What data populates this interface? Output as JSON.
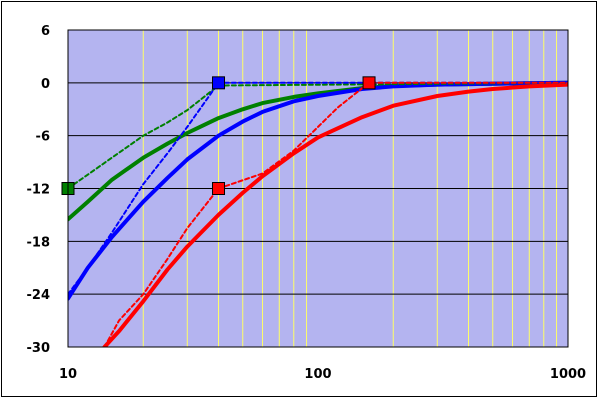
{
  "chart_data": {
    "type": "line",
    "x_scale": "log",
    "xlim": [
      10,
      1000
    ],
    "ylim": [
      -30,
      6
    ],
    "x_ticks": [
      10,
      100,
      1000
    ],
    "x_tick_labels": [
      "10",
      "100",
      "1000"
    ],
    "y_ticks": [
      6,
      0,
      -6,
      -12,
      -18,
      -24,
      -30
    ],
    "y_tick_labels": [
      "6",
      "0",
      "-6",
      "-12",
      "-18",
      "-24",
      "-30"
    ],
    "grid": true,
    "colors": {
      "plot_bg": "#b4b4f0",
      "gridline": "#000000",
      "minor_gridline": "#ffff66",
      "green": "#008000",
      "blue": "#0000ff",
      "red": "#ff0000"
    },
    "series": [
      {
        "style": "solid",
        "color": "green",
        "x": [
          10,
          12,
          15,
          20,
          25,
          30,
          40,
          50,
          60,
          80,
          100,
          150,
          200,
          300,
          500,
          1000
        ],
        "y": [
          -15.5,
          -13.5,
          -11,
          -8.5,
          -6.9,
          -5.7,
          -4.0,
          -3.0,
          -2.3,
          -1.6,
          -1.2,
          -0.6,
          -0.35,
          -0.2,
          -0.1,
          0
        ]
      },
      {
        "style": "solid",
        "color": "blue",
        "x": [
          10,
          12,
          15,
          20,
          25,
          30,
          40,
          50,
          60,
          80,
          100,
          150,
          200,
          300,
          500,
          1000
        ],
        "y": [
          -24.5,
          -21,
          -17.5,
          -13.5,
          -10.8,
          -8.7,
          -6.0,
          -4.4,
          -3.3,
          -2.1,
          -1.5,
          -0.7,
          -0.4,
          -0.2,
          -0.1,
          0
        ]
      },
      {
        "style": "solid",
        "color": "red",
        "x": [
          14,
          16,
          20,
          25,
          30,
          40,
          50,
          60,
          80,
          100,
          150,
          200,
          300,
          400,
          500,
          700,
          1000
        ],
        "y": [
          -30,
          -28.2,
          -24.8,
          -21.2,
          -18.6,
          -15.0,
          -12.5,
          -10.6,
          -8.0,
          -6.2,
          -3.9,
          -2.6,
          -1.5,
          -1.0,
          -0.7,
          -0.4,
          -0.2
        ]
      },
      {
        "style": "dashed",
        "color": "green",
        "x": [
          10,
          20,
          25,
          30,
          40,
          1000
        ],
        "y": [
          -12,
          -6,
          -4.5,
          -3.1,
          -0.3,
          0
        ]
      },
      {
        "style": "dashed",
        "color": "blue",
        "x": [
          10,
          12,
          15,
          20,
          25,
          30,
          40,
          1000
        ],
        "y": [
          -24,
          -21,
          -17,
          -11.5,
          -8,
          -5,
          0,
          0
        ]
      },
      {
        "style": "dashed",
        "color": "red",
        "x": [
          14,
          16,
          20,
          25,
          30,
          40,
          60,
          80,
          100,
          120,
          160,
          1000
        ],
        "y": [
          -30,
          -27,
          -24,
          -20,
          -16.5,
          -12,
          -10.3,
          -7.7,
          -5,
          -2.8,
          0,
          0
        ]
      }
    ],
    "markers": [
      {
        "color": "green",
        "x": 10,
        "y": -12
      },
      {
        "color": "blue",
        "x": 40,
        "y": 0
      },
      {
        "color": "red",
        "x": 40,
        "y": -12
      },
      {
        "color": "red",
        "x": 160,
        "y": 0
      }
    ]
  }
}
